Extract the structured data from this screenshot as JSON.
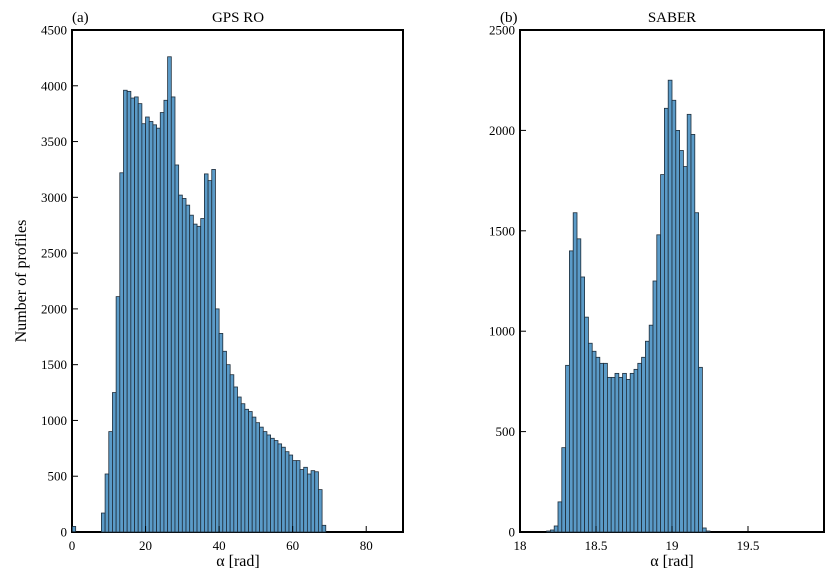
{
  "chart_data": [
    {
      "type": "bar",
      "panel_label": "(a)",
      "title": "GPS RO",
      "xlabel": "α [rad]",
      "ylabel": "Number of profiles",
      "xlim": [
        0,
        90
      ],
      "ylim": [
        0,
        4500
      ],
      "xticks": [
        0,
        20,
        40,
        60,
        80
      ],
      "yticks": [
        0,
        500,
        1000,
        1500,
        2000,
        2500,
        3000,
        3500,
        4000,
        4500
      ],
      "bar_color": "#5b9bc8",
      "bin_width": 1,
      "x": [
        0,
        8,
        9,
        10,
        11,
        12,
        13,
        14,
        15,
        16,
        17,
        18,
        19,
        20,
        21,
        22,
        23,
        24,
        25,
        26,
        27,
        28,
        29,
        30,
        31,
        32,
        33,
        34,
        35,
        36,
        37,
        38,
        39,
        40,
        41,
        42,
        43,
        44,
        45,
        46,
        47,
        48,
        49,
        50,
        51,
        52,
        53,
        54,
        55,
        56,
        57,
        58,
        59,
        60,
        61,
        62,
        63,
        64,
        65,
        66,
        67,
        68
      ],
      "values": [
        50,
        170,
        520,
        900,
        1250,
        2110,
        3220,
        3960,
        3950,
        3890,
        3900,
        3840,
        3660,
        3720,
        3680,
        3650,
        3620,
        3760,
        3870,
        4260,
        3900,
        3290,
        3020,
        2990,
        2930,
        2840,
        2760,
        2740,
        2810,
        3210,
        3150,
        3250,
        2000,
        1780,
        1620,
        1500,
        1410,
        1300,
        1210,
        1150,
        1100,
        1080,
        1030,
        980,
        940,
        900,
        870,
        840,
        820,
        790,
        760,
        720,
        690,
        640,
        640,
        560,
        580,
        520,
        550,
        540,
        380,
        60
      ]
    },
    {
      "type": "bar",
      "panel_label": "(b)",
      "title": "SABER",
      "xlabel": "α [rad]",
      "ylabel": "",
      "xlim": [
        18,
        20
      ],
      "ylim": [
        0,
        2500
      ],
      "xticks": [
        18,
        18.5,
        19,
        19.5
      ],
      "xtick_labels": [
        "18",
        "18.5",
        "19",
        "19.5"
      ],
      "yticks": [
        0,
        500,
        1000,
        1500,
        2000,
        2500
      ],
      "bar_color": "#5b9bc8",
      "bin_width": 0.025,
      "x": [
        18.175,
        18.2,
        18.225,
        18.25,
        18.275,
        18.3,
        18.325,
        18.35,
        18.375,
        18.4,
        18.425,
        18.45,
        18.475,
        18.5,
        18.525,
        18.55,
        18.575,
        18.6,
        18.625,
        18.65,
        18.675,
        18.7,
        18.725,
        18.75,
        18.775,
        18.8,
        18.825,
        18.85,
        18.875,
        18.9,
        18.925,
        18.95,
        18.975,
        19.0,
        19.025,
        19.05,
        19.075,
        19.1,
        19.125,
        19.15,
        19.175,
        19.2,
        19.225,
        19.25,
        19.275,
        19.3
      ],
      "values": [
        5,
        10,
        30,
        150,
        420,
        830,
        1400,
        1590,
        1460,
        1270,
        1070,
        940,
        900,
        870,
        840,
        840,
        770,
        770,
        790,
        770,
        790,
        760,
        790,
        810,
        840,
        870,
        950,
        1030,
        1250,
        1480,
        1780,
        2110,
        2250,
        2150,
        2000,
        1900,
        1820,
        2080,
        1980,
        1590,
        820,
        20,
        5,
        0,
        0,
        0
      ]
    }
  ]
}
